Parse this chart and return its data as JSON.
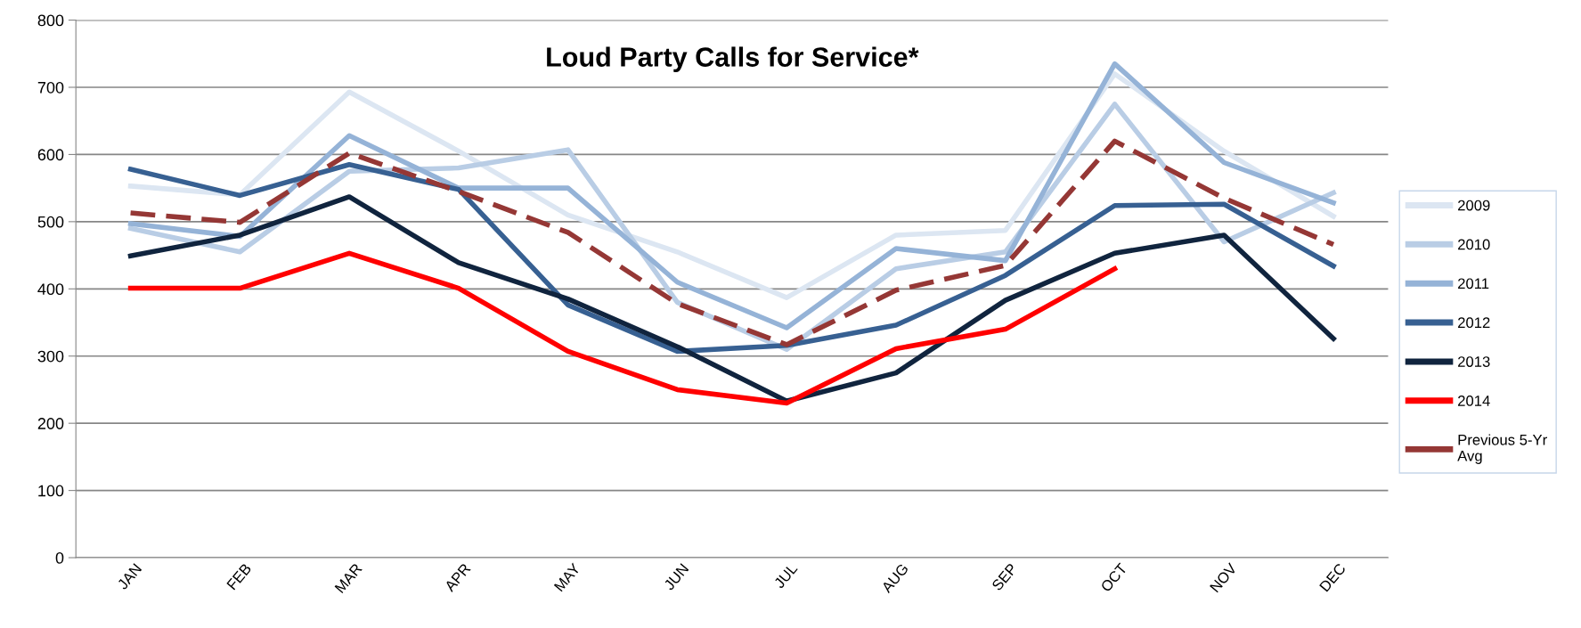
{
  "chart_data": {
    "type": "line",
    "title": "Loud Party Calls for Service*",
    "categories": [
      "JAN",
      "FEB",
      "MAR",
      "APR",
      "MAY",
      "JUN",
      "JUL",
      "AUG",
      "SEP",
      "OCT",
      "NOV",
      "DEC"
    ],
    "series": [
      {
        "name": "2009",
        "color": "#dce6f2",
        "values": [
          553,
          540,
          693,
          605,
          510,
          455,
          387,
          480,
          487,
          720,
          605,
          508
        ]
      },
      {
        "name": "2010",
        "color": "#b9cde5",
        "values": [
          490,
          455,
          575,
          580,
          607,
          380,
          310,
          430,
          455,
          675,
          470,
          543
        ]
      },
      {
        "name": "2011",
        "color": "#95b3d7",
        "values": [
          497,
          478,
          628,
          550,
          550,
          410,
          342,
          460,
          442,
          735,
          588,
          528
        ]
      },
      {
        "name": "2012",
        "color": "#376092",
        "values": [
          578,
          539,
          585,
          548,
          376,
          307,
          316,
          346,
          420,
          524,
          526,
          434
        ]
      },
      {
        "name": "2013",
        "color": "#10243e",
        "values": [
          449,
          480,
          537,
          439,
          385,
          314,
          233,
          275,
          383,
          453,
          480,
          326
        ]
      },
      {
        "name": "2014",
        "color": "#ff0000",
        "values": [
          401,
          401,
          453,
          401,
          307,
          250,
          230,
          311,
          340,
          430,
          null,
          null
        ]
      },
      {
        "name": "Previous 5-Yr Avg",
        "color": "#953735",
        "line_style": "dashed",
        "values": [
          513,
          499,
          602,
          545,
          484,
          378,
          317,
          398,
          435,
          620,
          535,
          466
        ]
      }
    ],
    "ylim": [
      0,
      800
    ],
    "yticks": [
      0,
      100,
      200,
      300,
      400,
      500,
      600,
      700,
      800
    ],
    "grid": "y",
    "legend": "right",
    "line_style": "solid",
    "marker": "none"
  }
}
